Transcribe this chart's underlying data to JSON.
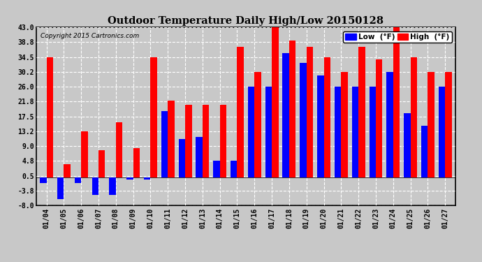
{
  "title": "Outdoor Temperature Daily High/Low 20150128",
  "copyright": "Copyright 2015 Cartronics.com",
  "dates": [
    "01/04",
    "01/05",
    "01/06",
    "01/07",
    "01/08",
    "01/09",
    "01/10",
    "01/11",
    "01/12",
    "01/13",
    "01/14",
    "01/15",
    "01/16",
    "01/17",
    "01/18",
    "01/19",
    "01/20",
    "01/21",
    "01/22",
    "01/23",
    "01/24",
    "01/25",
    "01/26",
    "01/27"
  ],
  "high": [
    34.5,
    3.9,
    13.2,
    7.9,
    15.8,
    8.5,
    34.5,
    22.0,
    20.8,
    20.8,
    20.8,
    37.4,
    30.2,
    43.0,
    39.2,
    37.4,
    34.5,
    30.2,
    37.4,
    33.8,
    43.0,
    34.5,
    30.2,
    30.2
  ],
  "low": [
    -1.5,
    -6.1,
    -1.5,
    -4.9,
    -5.0,
    -0.5,
    -0.5,
    19.0,
    11.0,
    11.6,
    4.8,
    4.8,
    26.0,
    26.0,
    35.6,
    32.9,
    29.3,
    26.0,
    26.0,
    26.0,
    30.2,
    18.5,
    14.9,
    26.0
  ],
  "ylim": [
    -8.0,
    43.0
  ],
  "yticks": [
    -8.0,
    -3.8,
    0.5,
    4.8,
    9.0,
    13.2,
    17.5,
    21.8,
    26.0,
    30.2,
    34.5,
    38.8,
    43.0
  ],
  "high_color": "#ff0000",
  "low_color": "#0000ff",
  "bg_color": "#c8c8c8",
  "plot_bg_color": "#c8c8c8",
  "grid_color": "#ffffff",
  "bar_width": 0.38,
  "legend_low_label": "Low  (°F)",
  "legend_high_label": "High  (°F)",
  "figsize": [
    6.9,
    3.75
  ],
  "dpi": 100
}
